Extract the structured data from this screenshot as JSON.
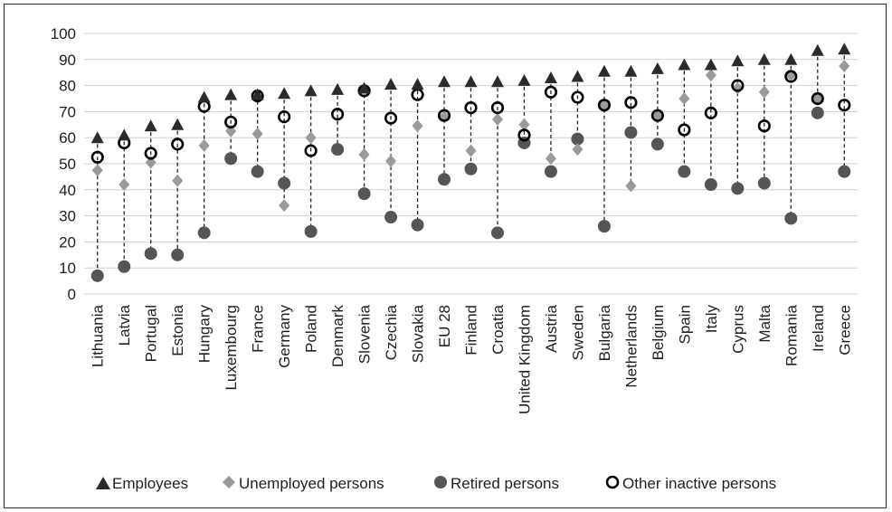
{
  "chart_data": {
    "type": "scatter",
    "categories": [
      "Lithuania",
      "Latvia",
      "Portugal",
      "Estonia",
      "Hungary",
      "Luxembourg",
      "France",
      "Germany",
      "Poland",
      "Denmark",
      "Slovenia",
      "Czechia",
      "Slovakia",
      "EU 28",
      "Finland",
      "Croatia",
      "United Kingdom",
      "Austria",
      "Sweden",
      "Bulgaria",
      "Netherlands",
      "Belgium",
      "Spain",
      "Italy",
      "Cyprus",
      "Malta",
      "Romania",
      "Ireland",
      "Greece"
    ],
    "ylim": [
      0,
      100
    ],
    "yticks": [
      0,
      10,
      20,
      30,
      40,
      50,
      60,
      70,
      80,
      90,
      100
    ],
    "grid": true,
    "legend_position": "bottom",
    "series": [
      {
        "name": "Employees",
        "marker": "triangle",
        "color": "#2b2b2b",
        "values": [
          60,
          61,
          64.5,
          65,
          75.5,
          76.5,
          76.5,
          77,
          78,
          78.5,
          79,
          80.5,
          80.5,
          81.5,
          81.5,
          81.5,
          82,
          83,
          83.5,
          85.5,
          85.5,
          86.5,
          88,
          88,
          89.5,
          90,
          90,
          93.5,
          94
        ]
      },
      {
        "name": "Unemployed persons",
        "marker": "diamond",
        "color": "#9a9a9a",
        "values": [
          47.5,
          42,
          50.5,
          43.5,
          57,
          62.5,
          61.5,
          34,
          60,
          null,
          53.5,
          51,
          64.5,
          68,
          55,
          67,
          65,
          52,
          55.5,
          72.5,
          41.5,
          68.5,
          75,
          84,
          79,
          77.5,
          84,
          75,
          87.5
        ]
      },
      {
        "name": "Retired persons",
        "marker": "circle",
        "color": "#555555",
        "values": [
          7,
          10.5,
          15.5,
          15,
          23.5,
          52,
          47,
          42.5,
          24,
          55.5,
          38.5,
          29.5,
          26.5,
          44,
          48,
          23.5,
          58,
          47,
          59.5,
          26,
          62,
          57.5,
          47,
          42,
          40.5,
          42.5,
          29,
          69.5,
          47
        ]
      },
      {
        "name": "Other inactive persons",
        "marker": "open-circle",
        "color": "#000000",
        "values": [
          52.5,
          58,
          54,
          57.5,
          72,
          66,
          76,
          68,
          55,
          69,
          78,
          67.5,
          76.5,
          68.5,
          71.5,
          71.5,
          61,
          77.5,
          75.5,
          72.5,
          73.5,
          68.5,
          63,
          69.5,
          80,
          64.5,
          83.5,
          75,
          72.5
        ]
      }
    ]
  },
  "legend": {
    "employees": "Employees",
    "unemployed": "Unemployed persons",
    "retired": "Retired persons",
    "inactive": "Other inactive persons"
  }
}
